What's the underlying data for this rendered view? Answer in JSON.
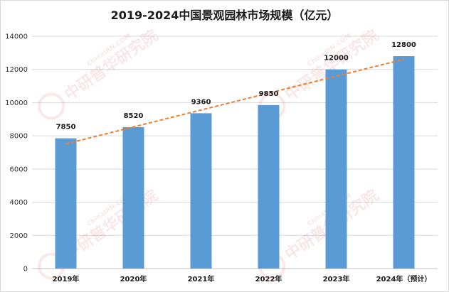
{
  "chart_data": {
    "type": "bar",
    "title": "2019-2024中国景观园林市场规模（亿元）",
    "categories": [
      "2019年",
      "2020年",
      "2021年",
      "2022年",
      "2023年",
      "2024年（预计）"
    ],
    "values": [
      7850,
      8520,
      9360,
      9850,
      12000,
      12800
    ],
    "data_labels": [
      "7850",
      "8520",
      "9360",
      "9850",
      "12000",
      "12800"
    ],
    "trendline": {
      "type": "linear",
      "style": "dashed"
    },
    "xlabel": "",
    "ylabel": "",
    "ylim": [
      0,
      14000
    ],
    "yticks": [
      0,
      2000,
      4000,
      6000,
      8000,
      10000,
      12000,
      14000
    ],
    "grid": true,
    "legend": "none",
    "colors": {
      "bar": "#5b9bd5",
      "trend": "#ed7d31",
      "grid": "#d9d9d9"
    }
  },
  "watermark": {
    "text": "中研普华研究院",
    "url": "ChinaIRN.COM",
    "logo": "CIRN"
  }
}
